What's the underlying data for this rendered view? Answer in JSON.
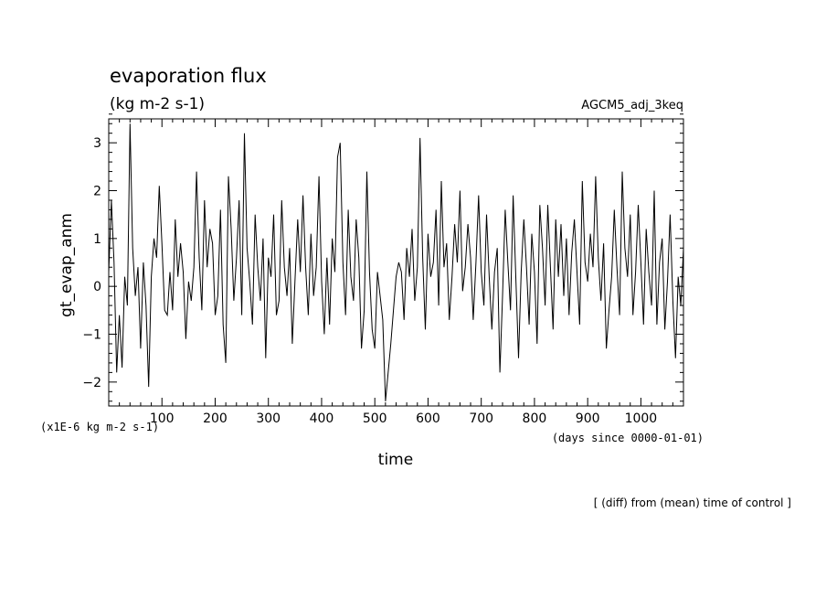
{
  "chart_data": {
    "type": "line",
    "title": "evaporation flux",
    "subtitle": "(kg m-2 s-1)",
    "annotation_right": "AGCM5_adj_3keq",
    "ylabel": "gt_evap_anm",
    "xlabel": "time",
    "y_units": "(x1E-6 kg m-2 s-1)",
    "x_units": "(days since 0000-01-01)",
    "footer": "[ (diff) from (mean) time of control ]",
    "xlim": [
      0,
      1080
    ],
    "ylim": [
      -2.5,
      3.5
    ],
    "xticks": [
      100,
      200,
      300,
      400,
      500,
      600,
      700,
      800,
      900,
      1000
    ],
    "yticks": [
      -2,
      -1,
      0,
      1,
      2,
      3
    ],
    "grid": false,
    "series": [
      {
        "color": "#000000",
        "x": [
          0,
          5,
          10,
          15,
          20,
          25,
          30,
          35,
          40,
          45,
          50,
          55,
          60,
          65,
          70,
          75,
          80,
          85,
          90,
          95,
          100,
          105,
          110,
          115,
          120,
          125,
          130,
          135,
          140,
          145,
          150,
          155,
          160,
          165,
          170,
          175,
          180,
          185,
          190,
          195,
          200,
          205,
          210,
          215,
          220,
          225,
          230,
          235,
          240,
          245,
          250,
          255,
          260,
          265,
          270,
          275,
          280,
          285,
          290,
          295,
          300,
          305,
          310,
          315,
          320,
          325,
          330,
          335,
          340,
          345,
          350,
          355,
          360,
          365,
          370,
          375,
          380,
          385,
          390,
          395,
          400,
          405,
          410,
          415,
          420,
          425,
          430,
          435,
          440,
          445,
          450,
          455,
          460,
          465,
          470,
          475,
          480,
          485,
          490,
          495,
          500,
          505,
          510,
          515,
          520,
          525,
          530,
          535,
          540,
          545,
          550,
          555,
          560,
          565,
          570,
          575,
          580,
          585,
          590,
          595,
          600,
          605,
          610,
          615,
          620,
          625,
          630,
          635,
          640,
          645,
          650,
          655,
          660,
          665,
          670,
          675,
          680,
          685,
          690,
          695,
          700,
          705,
          710,
          715,
          720,
          725,
          730,
          735,
          740,
          745,
          750,
          755,
          760,
          765,
          770,
          775,
          780,
          785,
          790,
          795,
          800,
          805,
          810,
          815,
          820,
          825,
          830,
          835,
          840,
          845,
          850,
          855,
          860,
          865,
          870,
          875,
          880,
          885,
          890,
          895,
          900,
          905,
          910,
          915,
          920,
          925,
          930,
          935,
          940,
          945,
          950,
          955,
          960,
          965,
          970,
          975,
          980,
          985,
          990,
          995,
          1000,
          1005,
          1010,
          1015,
          1020,
          1025,
          1030,
          1035,
          1040,
          1045,
          1050,
          1055,
          1060,
          1065,
          1070,
          1075,
          1080
        ],
        "values": [
          0.3,
          1.8,
          0.5,
          -1.8,
          -0.6,
          -1.7,
          0.2,
          -0.4,
          3.4,
          0.8,
          -0.2,
          0.4,
          -1.3,
          0.5,
          -0.4,
          -2.1,
          0.2,
          1.0,
          0.6,
          2.1,
          0.9,
          -0.5,
          -0.6,
          0.3,
          -0.5,
          1.4,
          0.2,
          0.9,
          0.3,
          -1.1,
          0.1,
          -0.3,
          0.4,
          2.4,
          0.6,
          -0.5,
          1.8,
          0.4,
          1.2,
          0.9,
          -0.6,
          -0.2,
          1.6,
          -0.8,
          -1.6,
          2.3,
          1.2,
          -0.3,
          0.6,
          1.8,
          -0.6,
          3.2,
          0.8,
          0.1,
          -0.8,
          1.5,
          0.4,
          -0.3,
          1.0,
          -1.5,
          0.6,
          0.2,
          1.5,
          -0.6,
          -0.3,
          1.8,
          0.4,
          -0.2,
          0.8,
          -1.2,
          0.1,
          1.4,
          0.3,
          1.9,
          0.4,
          -0.6,
          1.1,
          -0.2,
          0.4,
          2.3,
          0.1,
          -1.0,
          0.6,
          -0.8,
          1.0,
          0.3,
          2.7,
          3.0,
          0.5,
          -0.6,
          1.6,
          0.2,
          -0.3,
          1.4,
          0.6,
          -1.3,
          -0.5,
          2.4,
          0.3,
          -0.9,
          -1.3,
          0.3,
          -0.2,
          -0.7,
          -2.4,
          -1.8,
          -1.2,
          -0.5,
          0.2,
          0.5,
          0.3,
          -0.7,
          0.8,
          0.2,
          1.2,
          -0.3,
          0.4,
          3.1,
          0.6,
          -0.9,
          1.1,
          0.2,
          0.5,
          1.6,
          -0.4,
          2.2,
          0.4,
          0.9,
          -0.7,
          0.2,
          1.3,
          0.5,
          2.0,
          -0.1,
          0.4,
          1.3,
          0.6,
          -0.7,
          0.5,
          1.9,
          0.3,
          -0.4,
          1.5,
          0.2,
          -0.9,
          0.3,
          0.8,
          -1.8,
          -0.2,
          1.6,
          0.5,
          -0.5,
          1.9,
          0.2,
          -1.5,
          0.3,
          1.4,
          0.4,
          -0.8,
          1.1,
          0.3,
          -1.2,
          1.7,
          0.8,
          -0.4,
          1.7,
          0.4,
          -0.9,
          1.4,
          0.2,
          1.3,
          -0.2,
          1.0,
          -0.6,
          0.7,
          1.4,
          0.3,
          -0.8,
          2.2,
          0.5,
          0.1,
          1.1,
          0.4,
          2.3,
          0.6,
          -0.3,
          0.9,
          -1.3,
          -0.5,
          0.2,
          1.6,
          0.4,
          -0.6,
          2.4,
          0.8,
          0.2,
          1.5,
          -0.6,
          0.3,
          1.7,
          0.5,
          -0.8,
          1.2,
          0.3,
          -0.4,
          2.0,
          -0.8,
          0.5,
          1.0,
          -0.9,
          0.1,
          1.5,
          -0.3,
          -1.5,
          0.2,
          -0.4,
          0.8
        ]
      }
    ]
  }
}
